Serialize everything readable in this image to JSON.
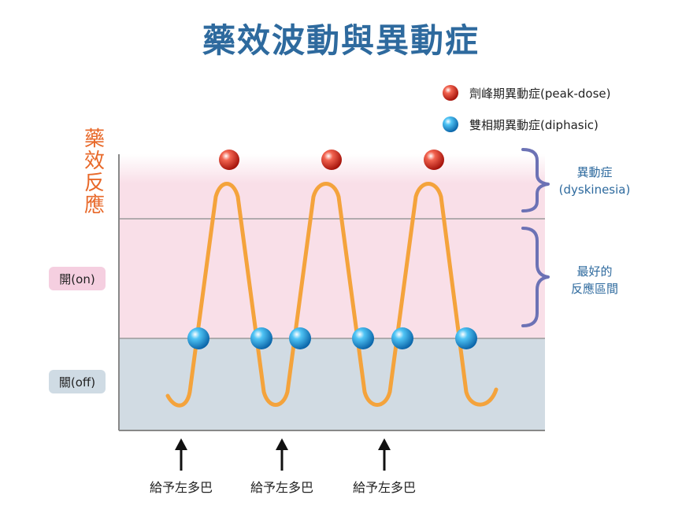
{
  "title": "藥效波動與異動症",
  "legend": [
    {
      "label": "劑峰期異動症(peak-dose)",
      "marker": "red-sphere-icon",
      "color": "#d8352a"
    },
    {
      "label": "雙相期異動症(diphasic)",
      "marker": "blue-sphere-icon",
      "color": "#1a9be0"
    }
  ],
  "y_axis_title": "藥效反應",
  "states": {
    "on": "開(on)",
    "off": "關(off)"
  },
  "braces": {
    "dyskinesia_line1": "異動症",
    "dyskinesia_line2": "(dyskinesia)",
    "optimal_line1": "最好的",
    "optimal_line2": "反應區間"
  },
  "dose_labels": [
    "給予左多巴",
    "給予左多巴",
    "給予左多巴"
  ],
  "colors": {
    "curve": "#f4a33c",
    "off_zone": "#d1dbe3",
    "on_zone": "#f9dfe8",
    "brace": "#6c72b5",
    "title": "#2e6a9e",
    "axis_title": "#e8692a"
  }
}
